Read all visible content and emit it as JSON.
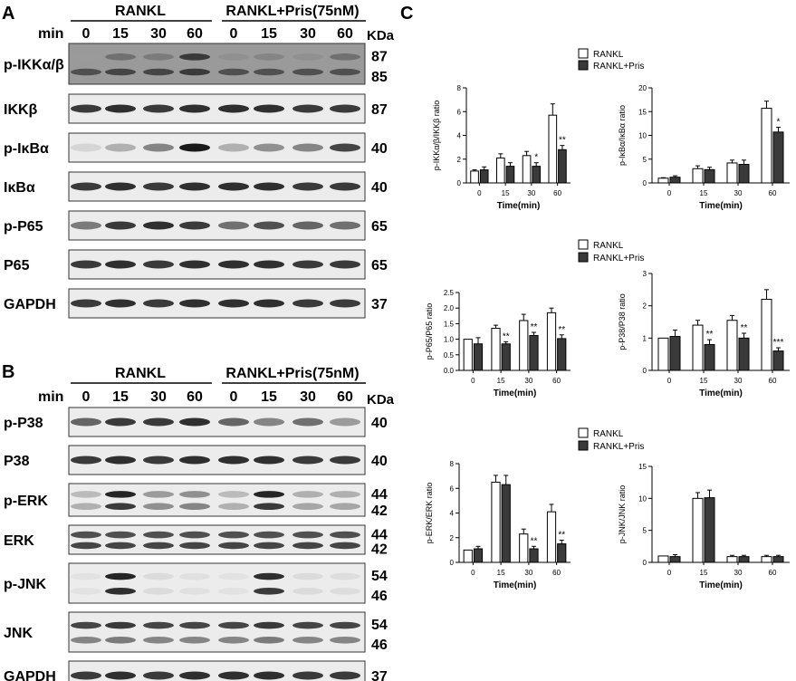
{
  "panels": {
    "A": "A",
    "B": "B",
    "C": "C"
  },
  "blots": {
    "min_label": "min",
    "kda_label": "KDa",
    "group1": "RANKL",
    "group2": "RANKL+Pris(75nM)",
    "times": [
      "0",
      "15",
      "30",
      "60",
      "0",
      "15",
      "30",
      "60"
    ],
    "panelA": [
      {
        "label": "p-IKKα/β",
        "mw": [
          "87",
          "85"
        ],
        "pattern": "pikk"
      },
      {
        "label": "IKKβ",
        "mw": [
          "87"
        ],
        "pattern": "even"
      },
      {
        "label": "p-IκBα",
        "mw": [
          "40"
        ],
        "pattern": "pikb"
      },
      {
        "label": "IκBα",
        "mw": [
          "40"
        ],
        "pattern": "even"
      },
      {
        "label": "p-P65",
        "mw": [
          "65"
        ],
        "pattern": "pp65"
      },
      {
        "label": "P65",
        "mw": [
          "65"
        ],
        "pattern": "even"
      },
      {
        "label": "GAPDH",
        "mw": [
          "37"
        ],
        "pattern": "even"
      }
    ],
    "panelB": [
      {
        "label": "p-P38",
        "mw": [
          "40"
        ],
        "pattern": "pp38"
      },
      {
        "label": "P38",
        "mw": [
          "40"
        ],
        "pattern": "even"
      },
      {
        "label": "p-ERK",
        "mw": [
          "44",
          "42"
        ],
        "pattern": "perk"
      },
      {
        "label": "ERK",
        "mw": [
          "44",
          "42"
        ],
        "pattern": "double"
      },
      {
        "label": "p-JNK",
        "mw": [
          "54",
          "46"
        ],
        "pattern": "pjnk"
      },
      {
        "label": "JNK",
        "mw": [
          "54",
          "46"
        ],
        "pattern": "jnk"
      },
      {
        "label": "GAPDH",
        "mw": [
          "37"
        ],
        "pattern": "even"
      }
    ]
  },
  "legend": {
    "series1": "RANKL",
    "series2": "RANKL+Pris"
  },
  "colors": {
    "series1_fill": "#ffffff",
    "series2_fill": "#3a3a3a",
    "axis": "#000000"
  },
  "chart_data": [
    {
      "type": "bar",
      "categories": [
        "0",
        "15",
        "30",
        "60"
      ],
      "xlabel": "Time(min)",
      "ylabel": "p-IKKα/β/IKKβ ratio",
      "ylim": [
        0,
        8
      ],
      "yticks": [
        "0",
        "2",
        "4",
        "6",
        "8"
      ],
      "legend": "top-right",
      "series": [
        {
          "name": "RANKL",
          "values": [
            1.0,
            2.1,
            2.3,
            5.7
          ],
          "errors": [
            0.1,
            0.35,
            0.35,
            0.95
          ]
        },
        {
          "name": "RANKL+Pris",
          "values": [
            1.1,
            1.4,
            1.4,
            2.8
          ],
          "errors": [
            0.25,
            0.3,
            0.3,
            0.35
          ]
        }
      ],
      "annotations": [
        "",
        "",
        "*",
        "**"
      ]
    },
    {
      "type": "bar",
      "categories": [
        "0",
        "15",
        "30",
        "60"
      ],
      "xlabel": "Time(min)",
      "ylabel": "p-IκBα/IκBα ratio",
      "ylim": [
        0,
        20
      ],
      "yticks": [
        "0",
        "5",
        "10",
        "15",
        "20"
      ],
      "series": [
        {
          "name": "RANKL",
          "values": [
            1.0,
            3.0,
            4.2,
            15.7
          ],
          "errors": [
            0.1,
            0.6,
            0.6,
            1.5
          ]
        },
        {
          "name": "RANKL+Pris",
          "values": [
            1.2,
            2.8,
            3.9,
            10.7
          ],
          "errors": [
            0.3,
            0.5,
            0.9,
            1.0
          ]
        }
      ],
      "annotations": [
        "",
        "",
        "",
        "*"
      ]
    },
    {
      "type": "bar",
      "categories": [
        "0",
        "15",
        "30",
        "60"
      ],
      "xlabel": "Time(min)",
      "ylabel": "p-P65/P65 ratio",
      "ylim": [
        0,
        2.5
      ],
      "yticks": [
        "0.0",
        "0.5",
        "1.0",
        "1.5",
        "2.0",
        "2.5"
      ],
      "legend": "top-right",
      "series": [
        {
          "name": "RANKL",
          "values": [
            1.0,
            1.35,
            1.6,
            1.85
          ],
          "errors": [
            0.0,
            0.1,
            0.2,
            0.15
          ]
        },
        {
          "name": "RANKL+Pris",
          "values": [
            0.85,
            0.85,
            1.12,
            1.02
          ],
          "errors": [
            0.2,
            0.07,
            0.1,
            0.12
          ]
        }
      ],
      "annotations": [
        "",
        "**",
        "**",
        "**"
      ]
    },
    {
      "type": "bar",
      "categories": [
        "0",
        "15",
        "30",
        "60"
      ],
      "xlabel": "Time(min)",
      "ylabel": "p-P38/P38 ratio",
      "ylim": [
        0,
        3
      ],
      "yticks": [
        "0",
        "1",
        "2",
        "3"
      ],
      "series": [
        {
          "name": "RANKL",
          "values": [
            1.0,
            1.4,
            1.55,
            2.2
          ],
          "errors": [
            0.0,
            0.15,
            0.15,
            0.3
          ]
        },
        {
          "name": "RANKL+Pris",
          "values": [
            1.05,
            0.8,
            1.0,
            0.6
          ],
          "errors": [
            0.2,
            0.15,
            0.15,
            0.1
          ]
        }
      ],
      "annotations": [
        "",
        "**",
        "**",
        "***"
      ]
    },
    {
      "type": "bar",
      "categories": [
        "0",
        "15",
        "30",
        "60"
      ],
      "xlabel": "Time(min)",
      "ylabel": "p-ERK/ERK ratio",
      "ylim": [
        0,
        8
      ],
      "yticks": [
        "0",
        "2",
        "4",
        "6",
        "8"
      ],
      "legend": "top-right",
      "series": [
        {
          "name": "RANKL",
          "values": [
            1.0,
            6.5,
            2.3,
            4.1
          ],
          "errors": [
            0.0,
            0.55,
            0.4,
            0.6
          ]
        },
        {
          "name": "RANKL+Pris",
          "values": [
            1.1,
            6.3,
            1.1,
            1.5
          ],
          "errors": [
            0.2,
            0.75,
            0.2,
            0.3
          ]
        }
      ],
      "annotations": [
        "",
        "",
        "**",
        "**"
      ]
    },
    {
      "type": "bar",
      "categories": [
        "0",
        "15",
        "30",
        "60"
      ],
      "xlabel": "Time(min)",
      "ylabel": "p-JNK/JNK ratio",
      "ylim": [
        0,
        15
      ],
      "yticks": [
        "0",
        "5",
        "10",
        "15"
      ],
      "series": [
        {
          "name": "RANKL",
          "values": [
            1.0,
            10.0,
            0.9,
            0.9
          ],
          "errors": [
            0.0,
            0.9,
            0.2,
            0.2
          ]
        },
        {
          "name": "RANKL+Pris",
          "values": [
            0.9,
            10.1,
            0.9,
            0.9
          ],
          "errors": [
            0.3,
            1.2,
            0.2,
            0.2
          ]
        }
      ],
      "annotations": [
        "",
        "",
        "",
        ""
      ]
    }
  ]
}
